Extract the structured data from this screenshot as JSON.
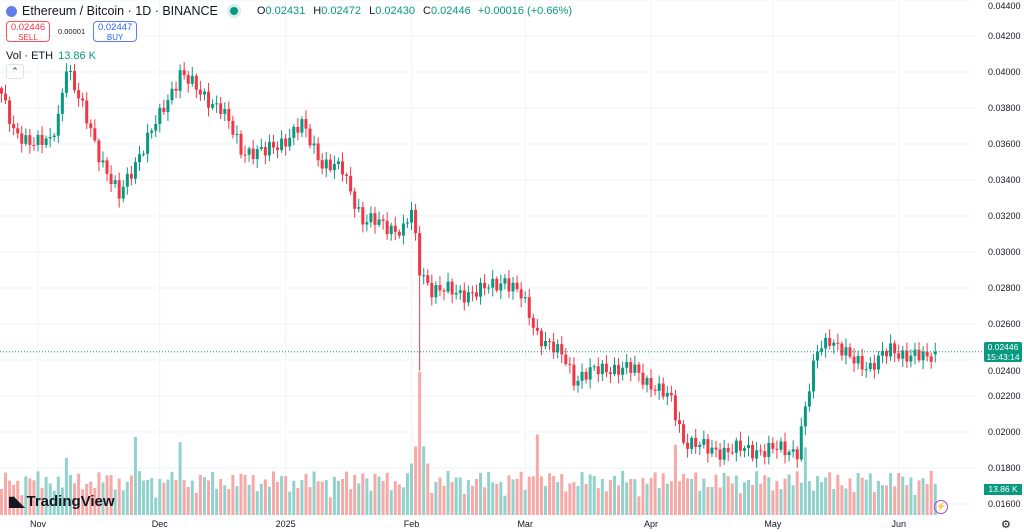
{
  "header": {
    "symbol_title": "Ethereum / Bitcoin · 1D · BINANCE",
    "open_label": "O",
    "open": "0.02431",
    "high_label": "H",
    "high": "0.02472",
    "low_label": "L",
    "low": "0.02430",
    "close_label": "C",
    "close": "0.02446",
    "change": "+0.00016 (+0.66%)"
  },
  "trade": {
    "sell_price": "0.02446",
    "sell_label": "SELL",
    "spread": "0.00001",
    "buy_price": "0.02447",
    "buy_label": "BUY"
  },
  "volume_legend": {
    "label": "Vol · ETH",
    "value": "13.86 K"
  },
  "price_tag": {
    "price": "0.02446",
    "countdown": "15:43:14"
  },
  "volume_tag": "13.86 K",
  "brand": "TradingView",
  "colors": {
    "up": "#089981",
    "down": "#f23645",
    "up_volume": "#92d2cc",
    "down_volume": "#f7a9a7",
    "grid": "#f0f3fa"
  },
  "chart_data": {
    "type": "candlestick",
    "symbol": "ETHBTC",
    "interval": "1D",
    "ylim": [
      0.0158,
      0.044
    ],
    "y_ticks": [
      "0.04400",
      "0.04200",
      "0.04000",
      "0.03800",
      "0.03600",
      "0.03400",
      "0.03200",
      "0.03000",
      "0.02800",
      "0.02600",
      "0.02400",
      "0.02200",
      "0.02000",
      "0.01800",
      "0.01600"
    ],
    "x_ticks": [
      {
        "label": "Nov",
        "date": "2024-11-01"
      },
      {
        "label": "Dec",
        "date": "2024-12-01"
      },
      {
        "label": "2025",
        "date": "2025-01-01"
      },
      {
        "label": "Feb",
        "date": "2025-02-01"
      },
      {
        "label": "Mar",
        "date": "2025-03-01"
      },
      {
        "label": "Apr",
        "date": "2025-04-01"
      },
      {
        "label": "May",
        "date": "2025-05-01"
      },
      {
        "label": "Jun",
        "date": "2025-06-01"
      }
    ],
    "date_range": [
      "2024-10-23",
      "2025-06-10"
    ],
    "close_path": [
      [
        "2024-10-23",
        0.0388
      ],
      [
        "2024-10-26",
        0.0365
      ],
      [
        "2024-11-04",
        0.036
      ],
      [
        "2024-11-06",
        0.0375
      ],
      [
        "2024-11-08",
        0.0405
      ],
      [
        "2024-11-11",
        0.0385
      ],
      [
        "2024-11-16",
        0.0355
      ],
      [
        "2024-11-21",
        0.033
      ],
      [
        "2024-11-26",
        0.0355
      ],
      [
        "2024-12-01",
        0.0375
      ],
      [
        "2024-12-06",
        0.04
      ],
      [
        "2024-12-10",
        0.039
      ],
      [
        "2024-12-16",
        0.038
      ],
      [
        "2024-12-21",
        0.0357
      ],
      [
        "2024-12-27",
        0.0355
      ],
      [
        "2025-01-01",
        0.0363
      ],
      [
        "2025-01-05",
        0.037
      ],
      [
        "2025-01-10",
        0.035
      ],
      [
        "2025-01-15",
        0.0345
      ],
      [
        "2025-01-20",
        0.0318
      ],
      [
        "2025-01-25",
        0.0315
      ],
      [
        "2025-01-30",
        0.0312
      ],
      [
        "2025-02-01",
        0.0322
      ],
      [
        "2025-02-03",
        0.029
      ],
      [
        "2025-02-06",
        0.028
      ],
      [
        "2025-02-12",
        0.0277
      ],
      [
        "2025-02-18",
        0.0278
      ],
      [
        "2025-02-24",
        0.0285
      ],
      [
        "2025-02-28",
        0.0275
      ],
      [
        "2025-03-04",
        0.0255
      ],
      [
        "2025-03-07",
        0.0248
      ],
      [
        "2025-03-11",
        0.024
      ],
      [
        "2025-03-13",
        0.023
      ],
      [
        "2025-03-22",
        0.0236
      ],
      [
        "2025-03-28",
        0.0234
      ],
      [
        "2025-04-02",
        0.0225
      ],
      [
        "2025-04-06",
        0.0217
      ],
      [
        "2025-04-09",
        0.0196
      ],
      [
        "2025-04-15",
        0.019
      ],
      [
        "2025-05-07",
        0.019
      ],
      [
        "2025-05-09",
        0.0213
      ],
      [
        "2025-05-12",
        0.0245
      ],
      [
        "2025-05-15",
        0.0253
      ],
      [
        "2025-05-20",
        0.024
      ],
      [
        "2025-05-25",
        0.0237
      ],
      [
        "2025-05-30",
        0.0245
      ],
      [
        "2025-06-04",
        0.0243
      ],
      [
        "2025-06-08",
        0.024
      ],
      [
        "2025-06-10",
        0.02446
      ]
    ],
    "notable_lows": [
      [
        "2025-02-03",
        0.0234
      ]
    ],
    "volume_peaks": [
      [
        "2024-11-08",
        2.2
      ],
      [
        "2024-11-25",
        3.0
      ],
      [
        "2024-12-06",
        2.8
      ],
      [
        "2025-01-20",
        1.6
      ],
      [
        "2025-02-03",
        5.5
      ],
      [
        "2025-03-04",
        3.1
      ],
      [
        "2025-04-07",
        2.7
      ],
      [
        "2025-05-09",
        2.6
      ]
    ],
    "last_volume": "13.86 K"
  }
}
